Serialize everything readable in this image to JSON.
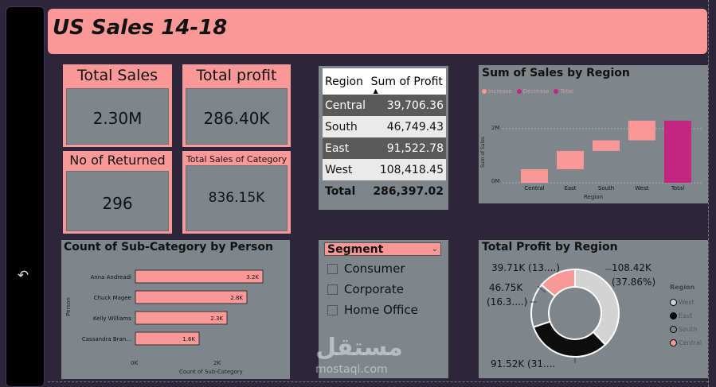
{
  "back_icon_glyph": "↶",
  "banner": {
    "title": "US Sales 14-18"
  },
  "cards": {
    "total_sales": {
      "label": "Total Sales",
      "value": "2.30M"
    },
    "total_profit": {
      "label": "Total profit",
      "value": "286.40K"
    },
    "returned": {
      "label": "No of Returned",
      "value": "296"
    },
    "category": {
      "label": "Total Sales of Category",
      "value": "836.15K"
    }
  },
  "region_table": {
    "headers": [
      "Region",
      "Sum of Profit"
    ],
    "rows": [
      {
        "region": "Central",
        "profit": "39,706.36"
      },
      {
        "region": "South",
        "profit": "46,749.43"
      },
      {
        "region": "East",
        "profit": "91,522.78"
      },
      {
        "region": "West",
        "profit": "108,418.45"
      }
    ],
    "total": {
      "label": "Total",
      "value": "286,397.02"
    }
  },
  "waterfall": {
    "title": "Sum of Sales by Region",
    "legend": [
      "Increase",
      "Decrease",
      "Total"
    ],
    "ylabel": "Sum of Sales",
    "xlabel": "Region",
    "yticks": [
      "2M",
      "0M"
    ],
    "colors": {
      "increase": "#f99896",
      "decrease": "#c2267e",
      "total": "#c2267e"
    }
  },
  "segment": {
    "title": "Segment",
    "options": [
      "Consumer",
      "Corporate",
      "Home Office"
    ]
  },
  "bar_chart": {
    "title": "Count of Sub-Category by Person",
    "xlabel": "Count of Sub-Category",
    "ylabel": "Person",
    "xticks": [
      "0K",
      "2K"
    ]
  },
  "donut": {
    "title": "Total Profit by Region",
    "legend_title": "Region",
    "labels": {
      "central": "39.71K (13....)",
      "south_a": "46.75K",
      "south_b": "(16.3....)",
      "west_a": "108.42K",
      "west_b": "(37.86%)",
      "east": "91.52K (31...."
    }
  },
  "watermark": {
    "arabic": "مستقل",
    "latin": "mostaql.com"
  },
  "chart_data": [
    {
      "type": "bar",
      "title": "Count of Sub-Category by Person",
      "xlabel": "Count of Sub-Category",
      "ylabel": "Person",
      "categories": [
        "Anna Andreadi",
        "Chuck Magee",
        "Kelly Williams",
        "Cassandra Bran..."
      ],
      "values": [
        3200,
        2800,
        2300,
        1600
      ],
      "value_labels": [
        "3.2K",
        "2.8K",
        "2.3K",
        "1.6K"
      ],
      "xlim": [
        0,
        3400
      ]
    },
    {
      "type": "bar",
      "title": "Sum of Sales by Region",
      "subtype": "waterfall",
      "categories": [
        "Central",
        "East",
        "South",
        "West",
        "Total"
      ],
      "values": [
        0.5,
        0.68,
        0.39,
        0.73,
        2.3
      ],
      "ylabel": "Sum of Sales",
      "xlabel": "Region",
      "ylim": [
        0,
        2.7
      ]
    },
    {
      "type": "pie",
      "title": "Total Profit by Region",
      "categories": [
        "West",
        "East",
        "South",
        "Central"
      ],
      "values": [
        108418.45,
        91522.78,
        46749.43,
        39706.36
      ],
      "colors": [
        "#d3d3d3",
        "#0d0d0d",
        "#7f868b",
        "#f99896"
      ]
    }
  ]
}
